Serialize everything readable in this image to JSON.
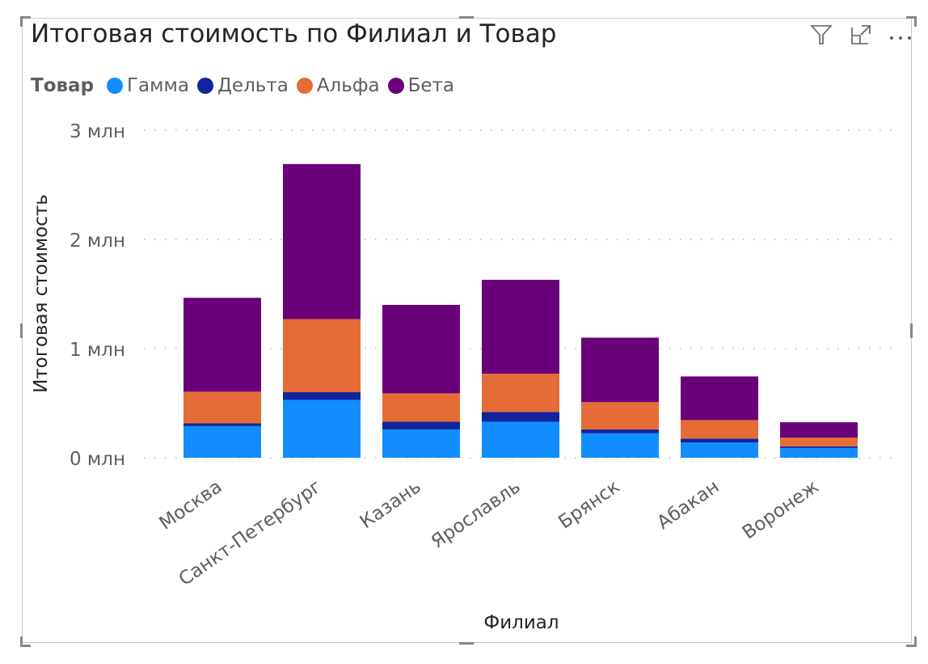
{
  "chart_data": {
    "type": "bar",
    "stacked": true,
    "title": "Итоговая стоимость по Филиал и Товар",
    "xlabel": "Филиал",
    "ylabel": "Итоговая стоимость",
    "legend_title": "Товар",
    "legend_position": "top-left",
    "grid": true,
    "ylim": [
      0,
      3
    ],
    "y_unit": "млн",
    "y_ticks": [
      "0 млн",
      "1 млн",
      "2 млн",
      "3 млн"
    ],
    "categories": [
      "Москва",
      "Санкт-Петербург",
      "Казань",
      "Ярославль",
      "Брянск",
      "Абакан",
      "Воронеж"
    ],
    "series": [
      {
        "name": "Гамма",
        "color": "#118DFF",
        "values": [
          0.29,
          0.53,
          0.26,
          0.33,
          0.225,
          0.14,
          0.09
        ]
      },
      {
        "name": "Дельта",
        "color": "#12239E",
        "values": [
          0.025,
          0.07,
          0.07,
          0.09,
          0.035,
          0.035,
          0.015
        ]
      },
      {
        "name": "Альфа",
        "color": "#E66C37",
        "values": [
          0.29,
          0.67,
          0.26,
          0.35,
          0.25,
          0.17,
          0.08
        ]
      },
      {
        "name": "Бета",
        "color": "#6B007B",
        "values": [
          0.86,
          1.42,
          0.81,
          0.86,
          0.59,
          0.4,
          0.14
        ]
      }
    ]
  },
  "header_icons": [
    "filter-icon",
    "focus-mode-icon",
    "more-options-icon"
  ]
}
